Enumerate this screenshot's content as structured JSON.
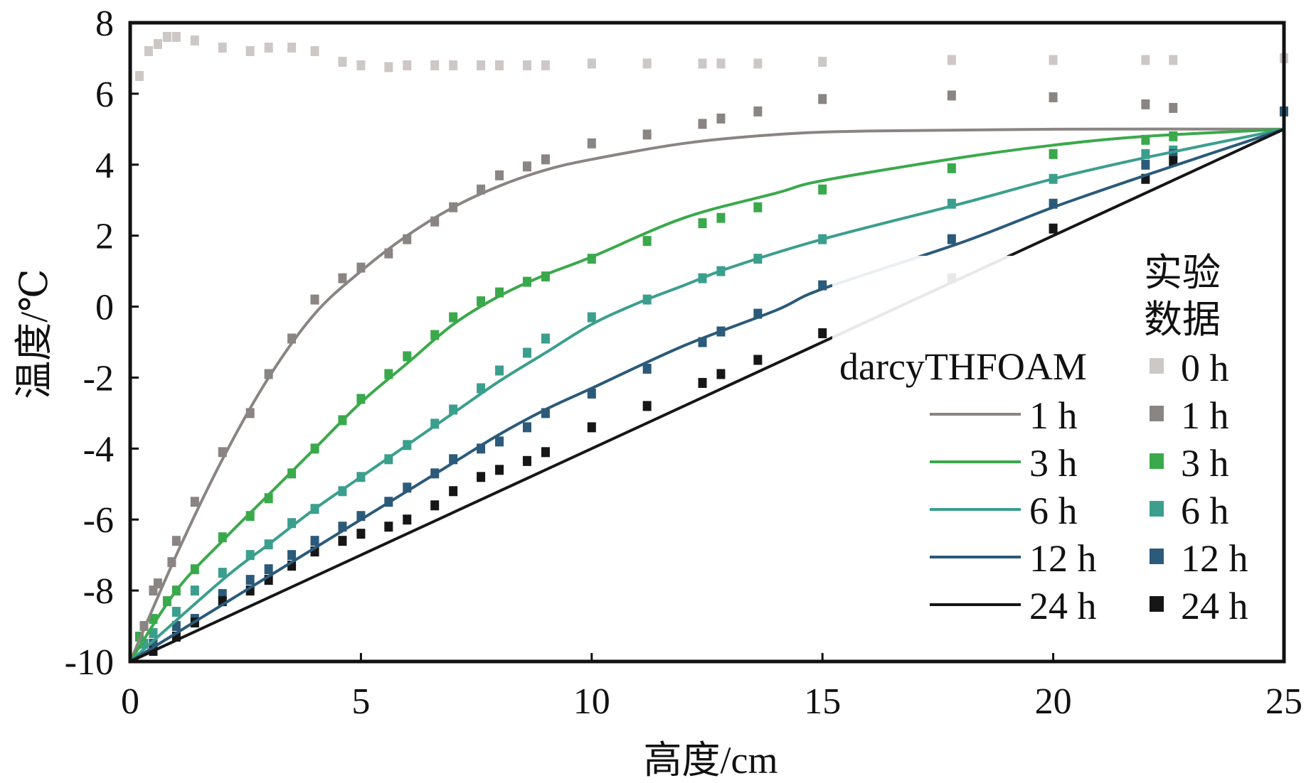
{
  "chart_data": {
    "type": "line",
    "title": "",
    "xlabel": "高度/cm",
    "ylabel": "温度/℃",
    "xlim": [
      0,
      25
    ],
    "ylim": [
      -10,
      8
    ],
    "xticks": [
      0,
      5,
      10,
      15,
      20,
      25
    ],
    "yticks": [
      -10,
      -8,
      -6,
      -4,
      -2,
      0,
      2,
      4,
      6,
      8
    ],
    "grid": false,
    "legend": {
      "placement": "right",
      "model_title": "darcyTHFOAM",
      "experiment_title_line1": "实验",
      "experiment_title_line2": "数据"
    },
    "colors": {
      "0 h": "#cdc8c6",
      "1 h": "#8a8482",
      "3 h": "#3aa94b",
      "6 h": "#3b9f8d",
      "12 h": "#2b5a7a",
      "24 h": "#161616"
    },
    "model_series": [
      {
        "name": "1 h",
        "x": [
          0,
          1,
          2,
          3,
          4,
          5,
          6,
          7,
          8,
          9,
          10,
          12,
          14,
          16,
          20,
          25
        ],
        "y": [
          -10,
          -7,
          -4.3,
          -2,
          -0.2,
          1.0,
          2.0,
          2.8,
          3.4,
          3.85,
          4.15,
          4.6,
          4.85,
          4.95,
          5,
          5
        ]
      },
      {
        "name": "3 h",
        "x": [
          0,
          1,
          2,
          3,
          4,
          5,
          6,
          7,
          8,
          9,
          10,
          12,
          14,
          15,
          18,
          20,
          22,
          25
        ],
        "y": [
          -10,
          -8,
          -6.6,
          -5.3,
          -4,
          -2.7,
          -1.6,
          -0.5,
          0.3,
          0.9,
          1.4,
          2.5,
          3.2,
          3.55,
          4.2,
          4.55,
          4.8,
          5
        ]
      },
      {
        "name": "6 h",
        "x": [
          0,
          2,
          3,
          4,
          5,
          6,
          7,
          8,
          9,
          10,
          11,
          12,
          13,
          15,
          18,
          20,
          22,
          25
        ],
        "y": [
          -10,
          -7.7,
          -6.7,
          -5.7,
          -4.8,
          -3.9,
          -3,
          -2.1,
          -1.3,
          -0.5,
          0.1,
          0.6,
          1.1,
          1.9,
          2.9,
          3.6,
          4.2,
          5
        ]
      },
      {
        "name": "12 h",
        "x": [
          0,
          2,
          3,
          4,
          5,
          6,
          7,
          8,
          9,
          10,
          12,
          14,
          15,
          18,
          20,
          22,
          25
        ],
        "y": [
          -10,
          -8.4,
          -7.6,
          -6.8,
          -6,
          -5.2,
          -4.4,
          -3.6,
          -2.9,
          -2.3,
          -1.1,
          -0.1,
          0.5,
          1.8,
          2.8,
          3.7,
          5
        ]
      },
      {
        "name": "24 h",
        "x": [
          0,
          25
        ],
        "y": [
          -10,
          5
        ]
      }
    ],
    "experimental_series": [
      {
        "name": "0 h",
        "x": [
          0.2,
          0.4,
          0.6,
          0.8,
          1,
          1.4,
          2,
          2.6,
          3,
          3.5,
          4,
          4.6,
          5,
          5.6,
          6,
          6.6,
          7,
          7.6,
          8,
          8.6,
          9,
          10,
          11.2,
          12.4,
          12.8,
          13.6,
          15,
          17.8,
          20,
          22,
          22.6,
          25
        ],
        "y": [
          6.5,
          7.2,
          7.4,
          7.6,
          7.6,
          7.5,
          7.3,
          7.2,
          7.3,
          7.3,
          7.2,
          6.9,
          6.8,
          6.75,
          6.8,
          6.8,
          6.8,
          6.8,
          6.8,
          6.8,
          6.8,
          6.85,
          6.85,
          6.85,
          6.85,
          6.85,
          6.9,
          6.95,
          6.95,
          6.95,
          6.95,
          7
        ]
      },
      {
        "name": "1 h",
        "x": [
          0.3,
          0.5,
          0.6,
          0.9,
          1,
          1.4,
          2,
          2.6,
          3,
          3.5,
          4,
          4.6,
          5,
          5.6,
          6,
          6.6,
          7,
          7.6,
          8,
          8.6,
          9,
          10,
          11.2,
          12.4,
          12.8,
          13.6,
          15,
          17.8,
          20,
          22,
          22.6
        ],
        "y": [
          -9,
          -8,
          -7.8,
          -7.2,
          -6.6,
          -5.5,
          -4.1,
          -3,
          -1.9,
          -0.9,
          0.2,
          0.8,
          1.1,
          1.5,
          1.9,
          2.4,
          2.8,
          3.3,
          3.7,
          3.95,
          4.15,
          4.6,
          4.85,
          5.15,
          5.3,
          5.5,
          5.85,
          5.95,
          5.9,
          5.7,
          5.6
        ]
      },
      {
        "name": "3 h",
        "x": [
          0.2,
          0.5,
          0.8,
          1,
          1.4,
          2,
          2.6,
          3,
          3.5,
          4,
          4.6,
          5,
          5.6,
          6,
          6.6,
          7,
          7.6,
          8,
          8.6,
          9,
          10,
          11.2,
          12.4,
          12.8,
          13.6,
          15,
          17.8,
          20,
          22,
          22.6
        ],
        "y": [
          -9.3,
          -8.8,
          -8.3,
          -8,
          -7.4,
          -6.5,
          -5.9,
          -5.4,
          -4.7,
          -4,
          -3.2,
          -2.6,
          -1.9,
          -1.4,
          -0.8,
          -0.3,
          0.15,
          0.4,
          0.7,
          0.85,
          1.35,
          1.85,
          2.35,
          2.5,
          2.8,
          3.3,
          3.9,
          4.3,
          4.7,
          4.8
        ]
      },
      {
        "name": "6 h",
        "x": [
          0.3,
          0.5,
          1,
          1.4,
          2,
          2.6,
          3,
          3.5,
          4,
          4.6,
          5,
          5.6,
          6,
          6.6,
          7,
          7.6,
          8,
          8.6,
          9,
          10,
          11.2,
          12.4,
          12.8,
          13.6,
          15,
          17.8,
          20,
          22,
          22.6
        ],
        "y": [
          -9.5,
          -9.2,
          -8.6,
          -8,
          -7.5,
          -7,
          -6.7,
          -6.1,
          -5.7,
          -5.2,
          -4.8,
          -4.3,
          -3.9,
          -3.3,
          -2.9,
          -2.3,
          -1.8,
          -1.3,
          -0.9,
          -0.3,
          0.2,
          0.8,
          1,
          1.35,
          1.9,
          2.9,
          3.6,
          4.3,
          4.4
        ]
      },
      {
        "name": "12 h",
        "x": [
          0.5,
          1,
          1.4,
          2,
          2.6,
          3,
          3.5,
          4,
          4.6,
          5,
          5.6,
          6,
          6.6,
          7,
          7.6,
          8,
          8.6,
          9,
          10,
          11.2,
          12.4,
          12.8,
          13.6,
          15,
          17.8,
          20,
          22,
          22.6,
          25
        ],
        "y": [
          -9.5,
          -9,
          -8.8,
          -8.1,
          -7.7,
          -7.4,
          -7,
          -6.6,
          -6.2,
          -5.9,
          -5.5,
          -5.1,
          -4.7,
          -4.3,
          -4,
          -3.8,
          -3.4,
          -3,
          -2.45,
          -1.75,
          -1,
          -0.7,
          -0.2,
          0.6,
          1.9,
          2.9,
          4,
          4.3,
          5.5
        ]
      },
      {
        "name": "24 h",
        "x": [
          0.5,
          1,
          1.4,
          2,
          2.6,
          3,
          3.5,
          4,
          4.6,
          5,
          5.6,
          6,
          6.6,
          7,
          7.6,
          8,
          8.6,
          9,
          10,
          11.2,
          12.4,
          12.8,
          13.6,
          15,
          17.8,
          20,
          22,
          22.6
        ],
        "y": [
          -9.7,
          -9.3,
          -8.9,
          -8.3,
          -8,
          -7.7,
          -7.3,
          -6.9,
          -6.6,
          -6.4,
          -6.2,
          -6,
          -5.6,
          -5.2,
          -4.8,
          -4.6,
          -4.35,
          -4.1,
          -3.4,
          -2.8,
          -2.15,
          -1.9,
          -1.5,
          -0.75,
          0.8,
          2.2,
          3.6,
          4.1
        ]
      }
    ]
  }
}
